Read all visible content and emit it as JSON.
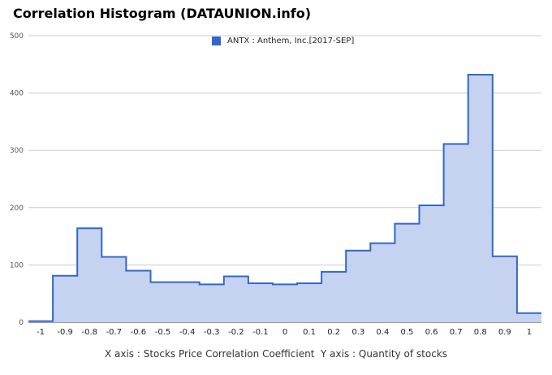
{
  "title": "Correlation Histogram (DATAUNION.info)",
  "axes_caption": "X axis : Stocks Price Correlation Coefficient  Y axis : Quantity of stocks",
  "chart_data": {
    "type": "area",
    "step": true,
    "title": "Correlation Histogram (DATAUNION.info)",
    "xlabel": "X axis : Stocks Price Correlation Coefficient",
    "ylabel": "Y axis : Quantity of stocks",
    "xlim": [
      -1.05,
      1.05
    ],
    "ylim": [
      0,
      500
    ],
    "grid": true,
    "legend_position": "top-center",
    "x_ticks": [
      "-1",
      "-0.9",
      "-0.8",
      "-0.7",
      "-0.6",
      "-0.5",
      "-0.4",
      "-0.3",
      "-0.2",
      "-0.1",
      "0",
      "0.1",
      "0.2",
      "0.3",
      "0.4",
      "0.5",
      "0.6",
      "0.7",
      "0.8",
      "0.9",
      "1"
    ],
    "y_ticks": [
      "0",
      "100",
      "200",
      "300",
      "400",
      "500"
    ],
    "x": [
      -1,
      -0.9,
      -0.8,
      -0.7,
      -0.6,
      -0.5,
      -0.4,
      -0.3,
      -0.2,
      -0.1,
      0,
      0.1,
      0.2,
      0.3,
      0.4,
      0.5,
      0.6,
      0.7,
      0.8,
      0.9,
      1
    ],
    "series": [
      {
        "name": "ANTX : Anthem, Inc.[2017-SEP]",
        "color": "#3366cc",
        "fill": "#c5d2f0",
        "values": [
          2,
          81,
          164,
          114,
          90,
          70,
          70,
          66,
          80,
          68,
          66,
          68,
          88,
          125,
          138,
          172,
          204,
          311,
          432,
          115,
          16
        ]
      }
    ]
  }
}
